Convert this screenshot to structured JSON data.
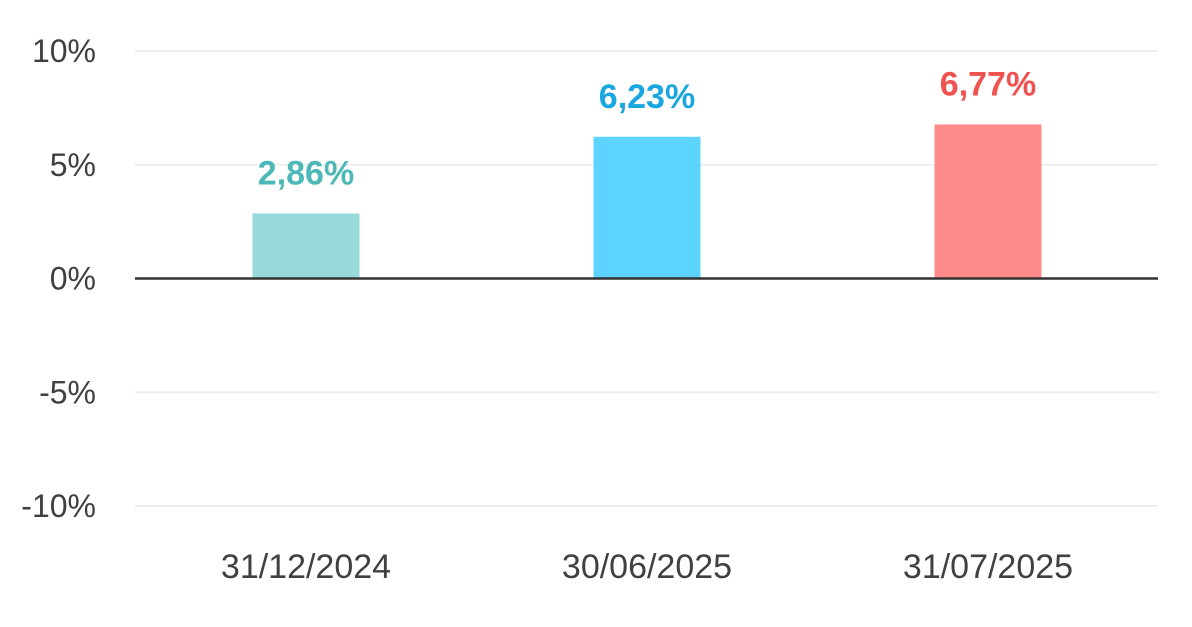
{
  "chart_data": {
    "type": "bar",
    "title": "",
    "xlabel": "",
    "ylabel": "",
    "categories": [
      "31/12/2024",
      "30/06/2025",
      "31/07/2025"
    ],
    "values": [
      2.86,
      6.23,
      6.77
    ],
    "data_labels": [
      "2,86%",
      "6,23%",
      "6,77%"
    ],
    "ylim": [
      -10,
      10
    ],
    "yticks": [
      10,
      5,
      0,
      -5,
      -10
    ],
    "ytick_labels": [
      "10%",
      "5%",
      "0%",
      "-5%",
      "-10%"
    ],
    "grid": true,
    "legend": "none",
    "bar_colors": [
      "#98d9d9",
      "#5dd3ff",
      "#ff8a8a"
    ],
    "label_colors": [
      "#4db8b8",
      "#1aa7e0",
      "#ef5350"
    ],
    "gridline_color": "#eeeeee",
    "zero_line_color": "#333333"
  }
}
